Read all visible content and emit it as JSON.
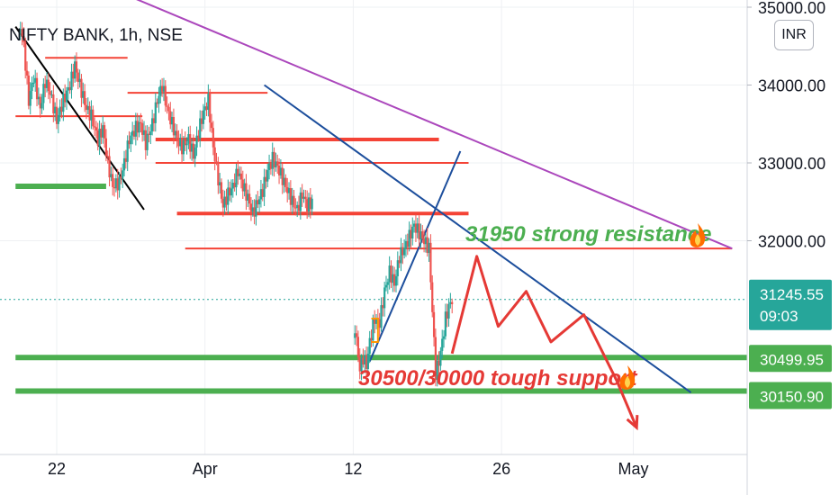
{
  "symbol": {
    "title": "NIFTY BANK, 1h, NSE"
  },
  "currency_button": {
    "label": "INR"
  },
  "price_axis": {
    "ticks": [
      {
        "value": 35000,
        "label": "35000.00"
      },
      {
        "value": 34000,
        "label": "34000.00"
      },
      {
        "value": 33000,
        "label": "33000.00"
      },
      {
        "value": 32000,
        "label": "32000.00"
      }
    ]
  },
  "time_axis": {
    "ticks": [
      {
        "t": 1,
        "label": "22"
      },
      {
        "t": 10,
        "label": "Apr"
      },
      {
        "t": 19,
        "label": "12"
      },
      {
        "t": 28,
        "label": "26"
      },
      {
        "t": 36,
        "label": "May"
      }
    ]
  },
  "badges": {
    "last_price": {
      "label": "31245.55",
      "countdown": "09:03",
      "color": "#26a69a"
    },
    "support_1": {
      "label": "30499.95",
      "color": "#4caf50"
    },
    "support_2": {
      "label": "30150.90",
      "color": "#4caf50"
    }
  },
  "annotations": {
    "resistance": {
      "text": "31950 strong resistance",
      "color": "#4caf50"
    },
    "support": {
      "text": "30500/30000 tough support",
      "color": "#e53935"
    }
  },
  "colors": {
    "bull": "#26a69a",
    "bear": "#ef5350",
    "red_line": "#f44336",
    "green_line": "#4caf50",
    "blue_line": "#1c4e9c",
    "purple_line": "#ab47bc",
    "projection": "#e53935",
    "marker": "#ff9800"
  },
  "chart_data": {
    "type": "candlestick",
    "title": "NIFTY BANK, 1h, NSE",
    "ylim": [
      29300,
      35000
    ],
    "x_unit": "trading day index (22 Mar = 1, Apr 1 = 10, Apr 12 = 19, Apr 26 = 28, May 3 = 36)",
    "close_path": [
      [
        -1.3,
        34900
      ],
      [
        -1.0,
        34500
      ],
      [
        -0.7,
        33800
      ],
      [
        -0.4,
        34100
      ],
      [
        0.0,
        33700
      ],
      [
        0.3,
        34050
      ],
      [
        0.6,
        33900
      ],
      [
        1.0,
        33550
      ],
      [
        1.4,
        33800
      ],
      [
        1.8,
        34000
      ],
      [
        2.1,
        34250
      ],
      [
        2.4,
        34000
      ],
      [
        2.8,
        33700
      ],
      [
        3.1,
        33600
      ],
      [
        3.5,
        33300
      ],
      [
        3.8,
        33450
      ],
      [
        4.1,
        33000
      ],
      [
        4.4,
        32700
      ],
      [
        4.8,
        32750
      ],
      [
        5.1,
        33000
      ],
      [
        5.4,
        33300
      ],
      [
        5.8,
        33450
      ],
      [
        6.1,
        33500
      ],
      [
        6.4,
        33250
      ],
      [
        6.8,
        33500
      ],
      [
        7.1,
        33800
      ],
      [
        7.4,
        34000
      ],
      [
        7.7,
        33700
      ],
      [
        8.0,
        33500
      ],
      [
        8.3,
        33300
      ],
      [
        8.6,
        33200
      ],
      [
        9.0,
        33300
      ],
      [
        9.3,
        33100
      ],
      [
        9.6,
        33400
      ],
      [
        9.9,
        33650
      ],
      [
        10.2,
        33800
      ],
      [
        10.5,
        33200
      ],
      [
        10.8,
        32800
      ],
      [
        11.1,
        32450
      ],
      [
        11.4,
        32600
      ],
      [
        11.7,
        32700
      ],
      [
        12.0,
        32900
      ],
      [
        12.3,
        32700
      ],
      [
        12.6,
        32550
      ],
      [
        12.9,
        32350
      ],
      [
        13.2,
        32500
      ],
      [
        13.5,
        32650
      ],
      [
        13.8,
        32900
      ],
      [
        14.1,
        33050
      ],
      [
        14.4,
        32950
      ],
      [
        14.7,
        32800
      ],
      [
        15.0,
        32650
      ],
      [
        15.3,
        32500
      ],
      [
        15.6,
        32400
      ],
      [
        15.9,
        32600
      ],
      [
        16.2,
        32450
      ],
      [
        16.5,
        32500
      ],
      [
        19.0,
        31100
      ],
      [
        19.2,
        30700
      ],
      [
        19.4,
        30350
      ],
      [
        19.6,
        30500
      ],
      [
        19.8,
        30400
      ],
      [
        20.0,
        30700
      ],
      [
        20.3,
        31000
      ],
      [
        20.6,
        30950
      ],
      [
        20.9,
        31350
      ],
      [
        21.2,
        31600
      ],
      [
        21.5,
        31450
      ],
      [
        21.8,
        31800
      ],
      [
        22.1,
        31900
      ],
      [
        22.4,
        32050
      ],
      [
        22.7,
        32200
      ],
      [
        23.0,
        32100
      ],
      [
        23.3,
        32000
      ],
      [
        23.6,
        31900
      ],
      [
        24.0,
        30300
      ],
      [
        24.2,
        30450
      ],
      [
        24.4,
        30700
      ],
      [
        24.6,
        31000
      ],
      [
        24.8,
        31150
      ],
      [
        25.0,
        31245.55
      ]
    ],
    "last_price": 31245.55,
    "horizontal_levels": [
      {
        "y": 34350,
        "x": [
          0.3,
          5.3
        ],
        "color": "red"
      },
      {
        "y": 33900,
        "x": [
          5.3,
          13.8
        ],
        "color": "red"
      },
      {
        "y": 33600,
        "x": [
          -1.5,
          6.2
        ],
        "color": "red"
      },
      {
        "y": 33300,
        "x": [
          7.0,
          24.2
        ],
        "color": "red"
      },
      {
        "y": 33000,
        "x": [
          7.0,
          26.0
        ],
        "color": "red"
      },
      {
        "y": 32350,
        "x": [
          8.3,
          26.0
        ],
        "color": "red"
      },
      {
        "y": 31900,
        "x": [
          8.8,
          42.0
        ],
        "color": "red"
      },
      {
        "y": 32700,
        "x": [
          -1.5,
          4.0
        ],
        "color": "green"
      },
      {
        "y": 30500,
        "x": [
          -1.5,
          47.0
        ],
        "color": "green"
      },
      {
        "y": 30070,
        "x": [
          -1.5,
          47.0
        ],
        "color": "green"
      }
    ],
    "trendlines": [
      {
        "from": [
          -0.9,
          35700
        ],
        "to": [
          42.0,
          31900
        ],
        "color": "purple"
      },
      {
        "from": [
          13.6,
          34000
        ],
        "to": [
          39.5,
          30050
        ],
        "color": "blue"
      },
      {
        "from": [
          20.0,
          30450
        ],
        "to": [
          25.5,
          33150
        ],
        "color": "blue"
      },
      {
        "from": [
          -1.5,
          34750
        ],
        "to": [
          6.3,
          32400
        ],
        "color": "black"
      }
    ],
    "projection_path": [
      [
        25.0,
        30550
      ],
      [
        26.5,
        31800
      ],
      [
        27.8,
        30900
      ],
      [
        29.5,
        31350
      ],
      [
        31.0,
        30700
      ],
      [
        33.0,
        31050
      ],
      [
        35.0,
        30200
      ],
      [
        36.2,
        29600
      ]
    ],
    "resistance_annotation": "31950 strong resistance",
    "support_annotation": "30500/30000 tough support"
  }
}
